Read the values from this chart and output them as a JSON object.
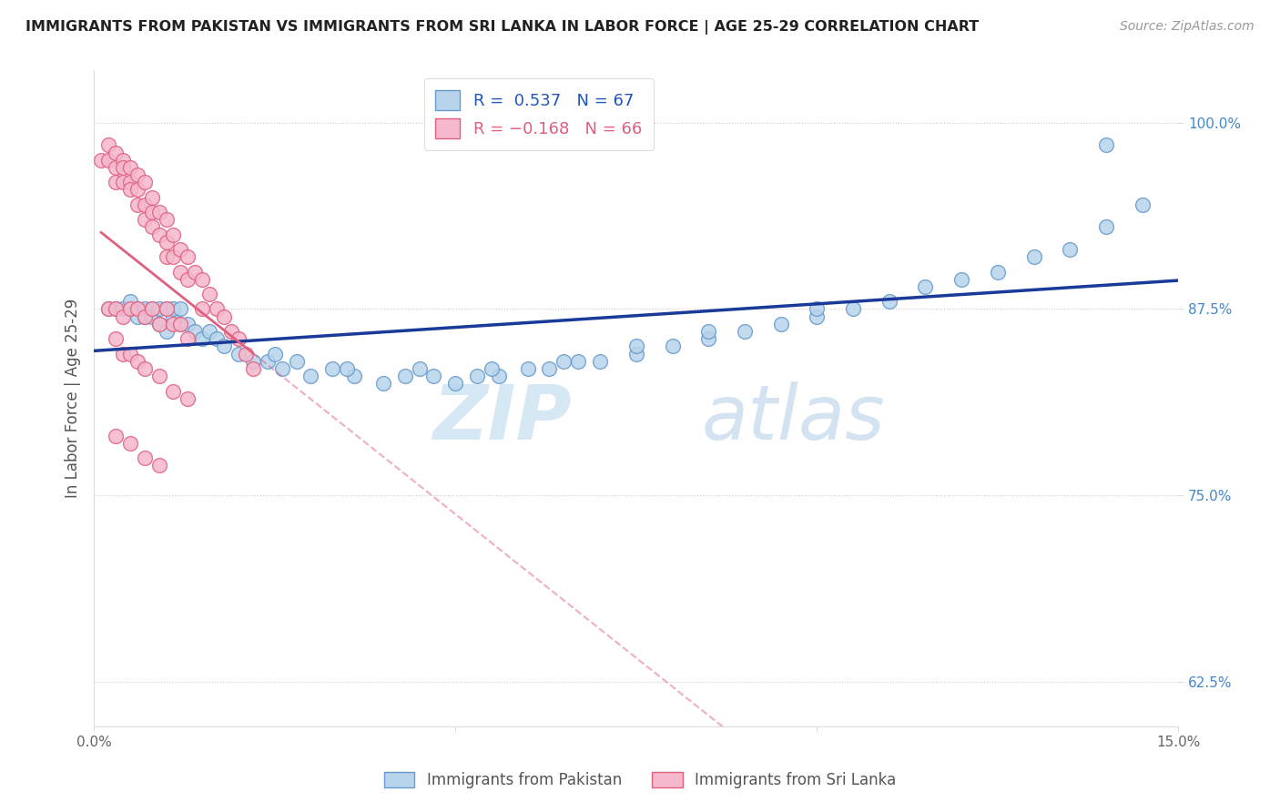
{
  "title": "IMMIGRANTS FROM PAKISTAN VS IMMIGRANTS FROM SRI LANKA IN LABOR FORCE | AGE 25-29 CORRELATION CHART",
  "source": "Source: ZipAtlas.com",
  "ylabel": "In Labor Force | Age 25-29",
  "xlim": [
    0.0,
    0.15
  ],
  "ylim": [
    0.595,
    1.035
  ],
  "xticks": [
    0.0,
    0.05,
    0.1,
    0.15
  ],
  "xticklabels": [
    "0.0%",
    "",
    "",
    "15.0%"
  ],
  "yticks": [
    0.625,
    0.75,
    0.875,
    1.0
  ],
  "yticklabels": [
    "62.5%",
    "75.0%",
    "87.5%",
    "100.0%"
  ],
  "pakistan_color": "#b8d4ea",
  "pakistan_edge": "#6699cc",
  "srilanka_color": "#f5b8cc",
  "srilanka_edge": "#e06080",
  "pakistan_R": 0.537,
  "pakistan_N": 67,
  "srilanka_R": -0.168,
  "srilanka_N": 66,
  "pakistan_line_color": "#1a3a99",
  "srilanka_line_color": "#e06080",
  "watermark_zip": "ZIP",
  "watermark_atlas": "atlas",
  "pakistan_scatter_x": [
    0.002,
    0.003,
    0.004,
    0.005,
    0.005,
    0.006,
    0.006,
    0.007,
    0.007,
    0.008,
    0.008,
    0.009,
    0.009,
    0.01,
    0.01,
    0.011,
    0.011,
    0.012,
    0.012,
    0.013,
    0.014,
    0.015,
    0.016,
    0.017,
    0.018,
    0.02,
    0.022,
    0.024,
    0.026,
    0.028,
    0.03,
    0.033,
    0.036,
    0.04,
    0.043,
    0.047,
    0.05,
    0.053,
    0.056,
    0.06,
    0.063,
    0.067,
    0.07,
    0.075,
    0.08,
    0.085,
    0.09,
    0.095,
    0.1,
    0.105,
    0.11,
    0.115,
    0.12,
    0.125,
    0.13,
    0.135,
    0.14,
    0.145,
    0.025,
    0.035,
    0.045,
    0.055,
    0.065,
    0.075,
    0.085,
    0.1,
    0.14
  ],
  "pakistan_scatter_y": [
    0.875,
    0.875,
    0.875,
    0.875,
    0.88,
    0.875,
    0.87,
    0.875,
    0.87,
    0.875,
    0.87,
    0.875,
    0.865,
    0.875,
    0.86,
    0.87,
    0.875,
    0.865,
    0.875,
    0.865,
    0.86,
    0.855,
    0.86,
    0.855,
    0.85,
    0.845,
    0.84,
    0.84,
    0.835,
    0.84,
    0.83,
    0.835,
    0.83,
    0.825,
    0.83,
    0.83,
    0.825,
    0.83,
    0.83,
    0.835,
    0.835,
    0.84,
    0.84,
    0.845,
    0.85,
    0.855,
    0.86,
    0.865,
    0.87,
    0.875,
    0.88,
    0.89,
    0.895,
    0.9,
    0.91,
    0.915,
    0.93,
    0.945,
    0.845,
    0.835,
    0.835,
    0.835,
    0.84,
    0.85,
    0.86,
    0.875,
    0.985
  ],
  "srilanka_scatter_x": [
    0.001,
    0.002,
    0.002,
    0.003,
    0.003,
    0.003,
    0.004,
    0.004,
    0.004,
    0.005,
    0.005,
    0.005,
    0.006,
    0.006,
    0.006,
    0.007,
    0.007,
    0.007,
    0.008,
    0.008,
    0.008,
    0.009,
    0.009,
    0.01,
    0.01,
    0.01,
    0.011,
    0.011,
    0.012,
    0.012,
    0.013,
    0.013,
    0.014,
    0.015,
    0.015,
    0.016,
    0.017,
    0.018,
    0.019,
    0.02,
    0.021,
    0.022,
    0.002,
    0.003,
    0.004,
    0.005,
    0.006,
    0.007,
    0.008,
    0.009,
    0.01,
    0.011,
    0.012,
    0.013,
    0.003,
    0.004,
    0.005,
    0.006,
    0.007,
    0.009,
    0.011,
    0.013,
    0.003,
    0.005,
    0.007,
    0.009
  ],
  "srilanka_scatter_y": [
    0.975,
    0.985,
    0.975,
    0.98,
    0.97,
    0.96,
    0.975,
    0.97,
    0.96,
    0.97,
    0.96,
    0.955,
    0.965,
    0.955,
    0.945,
    0.96,
    0.945,
    0.935,
    0.95,
    0.94,
    0.93,
    0.94,
    0.925,
    0.935,
    0.92,
    0.91,
    0.925,
    0.91,
    0.915,
    0.9,
    0.91,
    0.895,
    0.9,
    0.895,
    0.875,
    0.885,
    0.875,
    0.87,
    0.86,
    0.855,
    0.845,
    0.835,
    0.875,
    0.875,
    0.87,
    0.875,
    0.875,
    0.87,
    0.875,
    0.865,
    0.875,
    0.865,
    0.865,
    0.855,
    0.855,
    0.845,
    0.845,
    0.84,
    0.835,
    0.83,
    0.82,
    0.815,
    0.79,
    0.785,
    0.775,
    0.77
  ]
}
